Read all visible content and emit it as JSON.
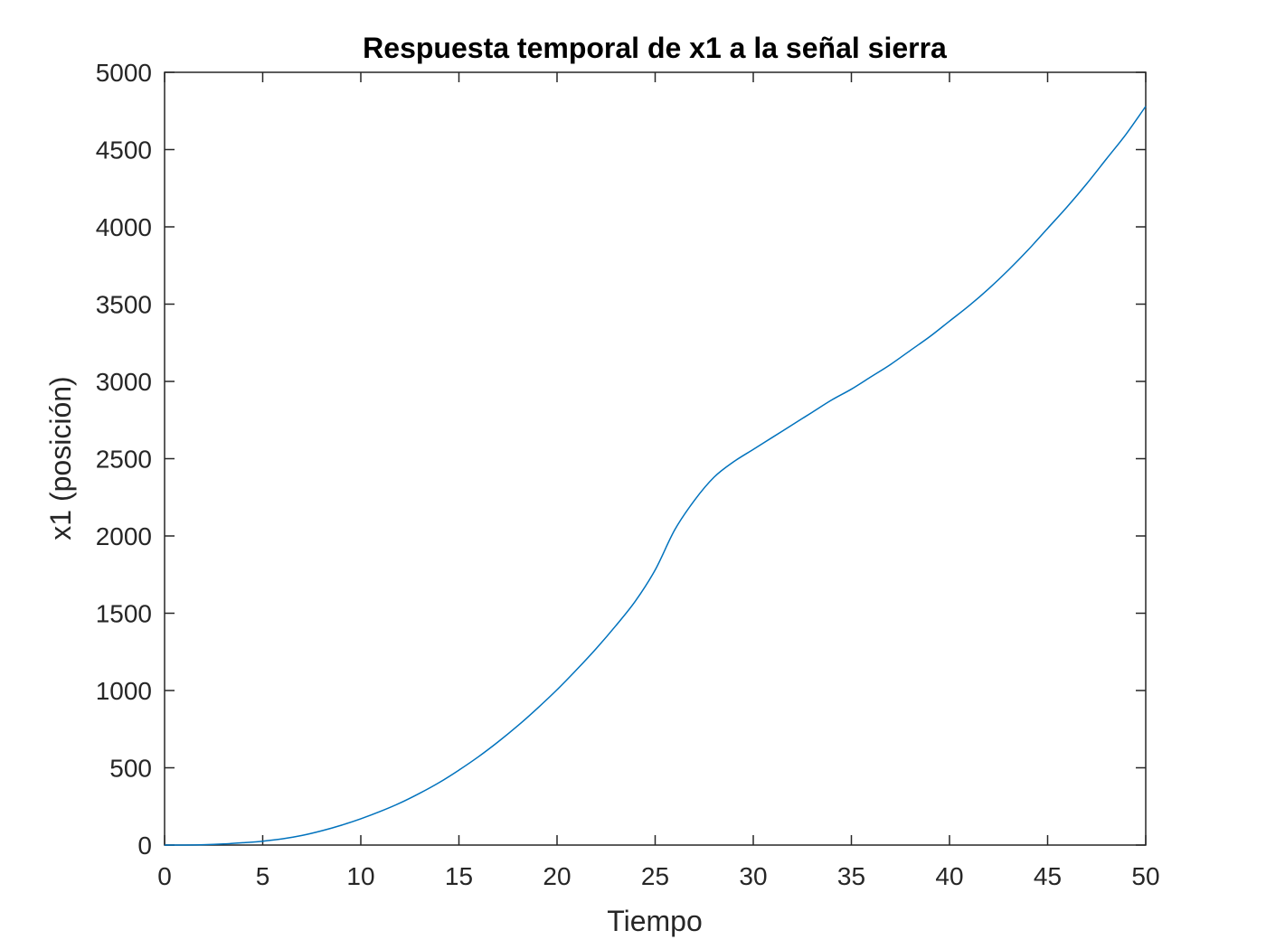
{
  "chart_data": {
    "type": "line",
    "title": "Respuesta temporal de x1 a la señal sierra",
    "xlabel": "Tiempo",
    "ylabel": "x1 (posición)",
    "xlim": [
      0,
      50
    ],
    "ylim": [
      0,
      5000
    ],
    "xticks": [
      0,
      5,
      10,
      15,
      20,
      25,
      30,
      35,
      40,
      45,
      50
    ],
    "yticks": [
      0,
      500,
      1000,
      1500,
      2000,
      2500,
      3000,
      3500,
      4000,
      4500,
      5000
    ],
    "xtick_labels": [
      "0",
      "5",
      "10",
      "15",
      "20",
      "25",
      "30",
      "35",
      "40",
      "45",
      "50"
    ],
    "ytick_labels": [
      "0",
      "500",
      "1000",
      "1500",
      "2000",
      "2500",
      "3000",
      "3500",
      "4000",
      "4500",
      "5000"
    ],
    "grid": false,
    "legend": false,
    "series": [
      {
        "color": "#0072BD",
        "x": [
          0,
          1,
          2,
          3,
          4,
          5,
          6,
          7,
          8,
          9,
          10,
          11,
          12,
          13,
          14,
          15,
          16,
          17,
          18,
          19,
          20,
          21,
          22,
          23,
          24,
          25,
          26,
          27,
          28,
          29,
          30,
          31,
          32,
          33,
          34,
          35,
          36,
          37,
          38,
          39,
          40,
          41,
          42,
          43,
          44,
          45,
          46,
          47,
          48,
          49,
          50
        ],
        "y": [
          0,
          0,
          2,
          7,
          15,
          25,
          40,
          62,
          92,
          128,
          170,
          218,
          272,
          335,
          405,
          485,
          572,
          668,
          772,
          885,
          1005,
          1135,
          1272,
          1420,
          1580,
          1780,
          2040,
          2230,
          2380,
          2480,
          2560,
          2640,
          2720,
          2800,
          2880,
          2950,
          3030,
          3110,
          3200,
          3290,
          3390,
          3490,
          3600,
          3720,
          3850,
          3990,
          4130,
          4280,
          4440,
          4600,
          4780
        ]
      }
    ]
  }
}
